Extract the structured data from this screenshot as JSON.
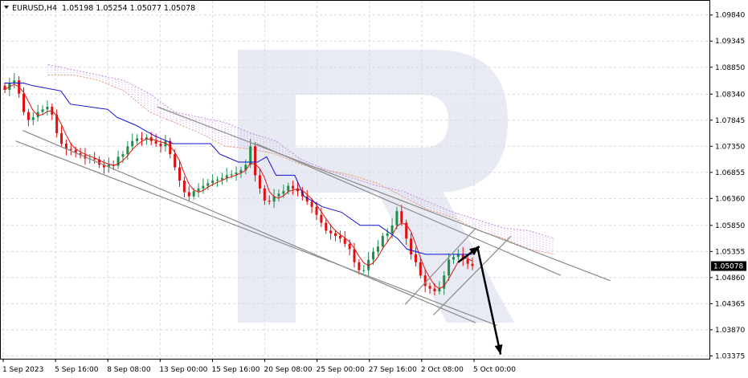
{
  "header": {
    "symbol": "EURUSD,H4",
    "ohlc": "1.05198 1.05254 1.05077 1.05078"
  },
  "colors": {
    "bull": "#1e8f4a",
    "bear": "#e01010",
    "tenkan": "#e01010",
    "kijun": "#1010d0",
    "senkou_a": "#f0a070",
    "senkou_b": "#c090e0",
    "channel": "#8a8a8a",
    "arrow": "#000000",
    "grid": "#d8d8e0",
    "badge": "#000000"
  },
  "chart_data": {
    "type": "candlestick",
    "instrument": "EURUSD",
    "timeframe": "H4",
    "last_price_label": "1.05078",
    "ylim": [
      1.0332,
      1.1011
    ],
    "y_ticks": [
      "1.09840",
      "1.09345",
      "1.08850",
      "1.08340",
      "1.07845",
      "1.07350",
      "1.06855",
      "1.06360",
      "1.05850",
      "1.05355",
      "1.04860",
      "1.04365",
      "1.03870",
      "1.03375"
    ],
    "x_ticks": [
      "1 Sep 2023",
      "5 Sep 16:00",
      "8 Sep 08:00",
      "13 Sep 00:00",
      "15 Sep 16:00",
      "20 Sep 08:00",
      "25 Sep 00:00",
      "27 Sep 16:00",
      "2 Oct 08:00",
      "5 Oct 00:00"
    ],
    "close_path": [
      1.0842,
      1.0855,
      1.086,
      1.0835,
      1.08,
      1.0785,
      1.079,
      1.08,
      1.0805,
      1.081,
      1.0795,
      1.076,
      1.074,
      1.073,
      1.0728,
      1.0722,
      1.0718,
      1.0712,
      1.0712,
      1.071,
      1.07,
      1.0695,
      1.07,
      1.0698,
      1.0715,
      1.072,
      1.0735,
      1.0745,
      1.075,
      1.0748,
      1.0752,
      1.0745,
      1.074,
      1.0735,
      1.0745,
      1.072,
      1.0695,
      1.067,
      1.0648,
      1.064,
      1.065,
      1.0655,
      1.066,
      1.0665,
      1.067,
      1.0672,
      1.0675,
      1.068,
      1.0682,
      1.0685,
      1.069,
      1.07,
      1.0735,
      1.068,
      1.0655,
      1.0632,
      1.063,
      1.064,
      1.0645,
      1.065,
      1.066,
      1.0655,
      1.065,
      1.064,
      1.063,
      1.062,
      1.0605,
      1.059,
      1.0575,
      1.057,
      1.0565,
      1.056,
      1.055,
      1.054,
      1.0515,
      1.05,
      1.05,
      1.052,
      1.0535,
      1.0545,
      1.0565,
      1.057,
      1.0585,
      1.0612,
      1.059,
      1.056,
      1.053,
      1.0515,
      1.049,
      1.047,
      1.0465,
      1.046,
      1.0465,
      1.049,
      1.052,
      1.0525,
      1.053,
      1.052,
      1.0512,
      1.0508
    ],
    "kijun_path": [
      [
        1.0855,
        0.0
      ],
      [
        1.0855,
        0.04
      ],
      [
        1.085,
        0.06
      ],
      [
        1.084,
        0.12
      ],
      [
        1.0815,
        0.14
      ],
      [
        1.0805,
        0.22
      ],
      [
        1.079,
        0.24
      ],
      [
        1.0775,
        0.28
      ],
      [
        1.0755,
        0.32
      ],
      [
        1.074,
        0.36
      ],
      [
        1.074,
        0.44
      ],
      [
        1.072,
        0.46
      ],
      [
        1.0705,
        0.5
      ],
      [
        1.0705,
        0.54
      ],
      [
        1.0715,
        0.56
      ],
      [
        1.068,
        0.58
      ],
      [
        1.068,
        0.62
      ],
      [
        1.064,
        0.64
      ],
      [
        1.062,
        0.68
      ],
      [
        1.061,
        0.72
      ],
      [
        1.0585,
        0.76
      ],
      [
        1.0585,
        0.8
      ],
      [
        1.056,
        0.84
      ],
      [
        1.054,
        0.86
      ],
      [
        1.053,
        0.9
      ],
      [
        1.053,
        1.0
      ]
    ],
    "span_a_path": [
      1.087,
      1.087,
      1.086,
      1.084,
      1.08,
      1.078,
      1.076,
      1.0735,
      1.073,
      1.072,
      1.07,
      1.069,
      1.068,
      1.0665,
      1.064,
      1.0615,
      1.06,
      1.0575,
      1.056,
      1.054,
      1.053
    ],
    "span_b_path": [
      1.089,
      1.088,
      1.087,
      1.086,
      1.0835,
      1.08,
      1.079,
      1.078,
      1.076,
      1.0745,
      1.071,
      1.069,
      1.0675,
      1.066,
      1.065,
      1.063,
      1.061,
      1.0595,
      1.058,
      1.0575,
      1.056
    ],
    "trendlines": [
      {
        "name": "upper-channel",
        "from": [
          0.22,
          1.081
        ],
        "to": [
          0.86,
          1.048
        ]
      },
      {
        "name": "mid-channel",
        "from": [
          0.36,
          1.074
        ],
        "to": [
          0.79,
          1.049
        ]
      },
      {
        "name": "lower-channel-a",
        "from": [
          0.02,
          1.0745
        ],
        "to": [
          0.7,
          1.0395
        ]
      },
      {
        "name": "lower-channel-b",
        "from": [
          0.03,
          1.0765
        ],
        "to": [
          0.67,
          1.04
        ]
      },
      {
        "name": "small-channel-top",
        "from": [
          0.57,
          1.0435
        ],
        "to": [
          0.67,
          1.058
        ]
      },
      {
        "name": "small-channel-bottom",
        "from": [
          0.61,
          1.0415
        ],
        "to": [
          0.72,
          1.0565
        ]
      }
    ],
    "forecast_arrows": [
      {
        "from": [
          0.645,
          1.0515
        ],
        "to": [
          0.675,
          1.0545
        ]
      },
      {
        "from": [
          0.672,
          1.0545
        ],
        "to": [
          0.705,
          1.034
        ]
      }
    ],
    "grid": true
  }
}
